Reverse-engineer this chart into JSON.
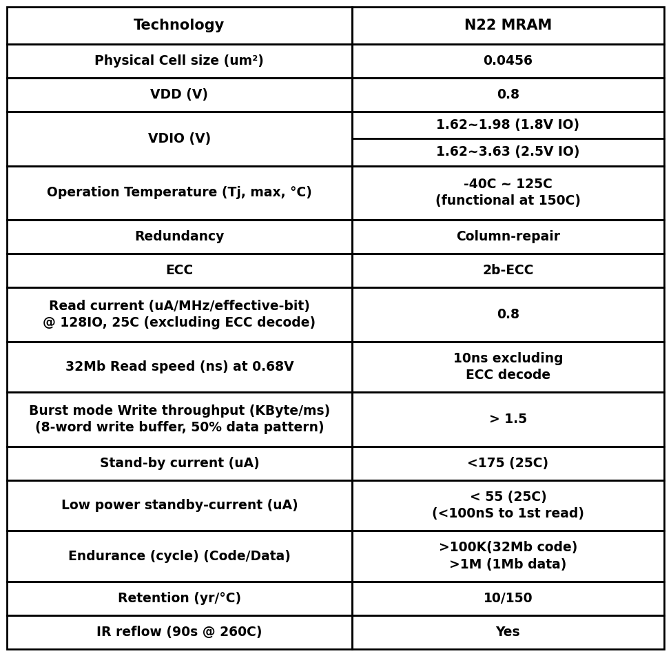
{
  "col1_header": "Technology",
  "col2_header": "N22 MRAM",
  "rows": [
    {
      "left": "Physical Cell size (um²)",
      "right_text": "0.0456",
      "right_split": false,
      "right_lines": [
        "0.0456"
      ]
    },
    {
      "left": "VDD (V)",
      "right_text": "0.8",
      "right_split": false,
      "right_lines": [
        "0.8"
      ]
    },
    {
      "left": "VDIO (V)",
      "right_text": "",
      "right_split": true,
      "right_lines": [
        "1.62~1.98 (1.8V IO)",
        "1.62~3.63 (2.5V IO)"
      ]
    },
    {
      "left": "Operation Temperature (Tj, max, °C)",
      "right_text": "",
      "right_split": false,
      "right_lines": [
        "-40C ~ 125C",
        "(functional at 150C)"
      ]
    },
    {
      "left": "Redundancy",
      "right_text": "Column-repair",
      "right_split": false,
      "right_lines": [
        "Column-repair"
      ]
    },
    {
      "left": "ECC",
      "right_text": "2b-ECC",
      "right_split": false,
      "right_lines": [
        "2b-ECC"
      ]
    },
    {
      "left": "Read current (uA/MHz/effective-bit)\n@ 128IO, 25C (excluding ECC decode)",
      "right_text": "0.8",
      "right_split": false,
      "right_lines": [
        "0.8"
      ]
    },
    {
      "left": "32Mb Read speed (ns) at 0.68V",
      "right_text": "",
      "right_split": false,
      "right_lines": [
        "10ns excluding",
        "ECC decode"
      ]
    },
    {
      "left": "Burst mode Write throughput (KByte/ms)\n(8-word write buffer, 50% data pattern)",
      "right_text": "> 1.5",
      "right_split": false,
      "right_lines": [
        "> 1.5"
      ]
    },
    {
      "left": "Stand-by current (uA)",
      "right_text": "<175 (25C)",
      "right_split": false,
      "right_lines": [
        "<175 (25C)"
      ]
    },
    {
      "left": "Low power standby-current (uA)",
      "right_text": "",
      "right_split": false,
      "right_lines": [
        "< 55 (25C)",
        "(<100nS to 1st read)"
      ]
    },
    {
      "left": "Endurance (cycle) (Code/Data)",
      "right_text": "",
      "right_split": false,
      "right_lines": [
        ">100K(32Mb code)",
        ">1M (1Mb data)"
      ]
    },
    {
      "left": "Retention (yr/°C)",
      "right_text": "10/150",
      "right_split": false,
      "right_lines": [
        "10/150"
      ]
    },
    {
      "left": "IR reflow (90s @ 260C)",
      "right_text": "Yes",
      "right_split": false,
      "right_lines": [
        "Yes"
      ]
    }
  ],
  "bg_color": "#ffffff",
  "border_color": "#000000",
  "text_color": "#000000",
  "font_size": 13.5,
  "header_font_size": 15.0,
  "col_split": 0.525,
  "row_heights_raw": [
    55,
    50,
    50,
    80,
    80,
    50,
    50,
    80,
    75,
    80,
    50,
    75,
    75,
    50,
    50
  ],
  "fig_width": 9.74,
  "fig_height": 9.52,
  "dpi": 100
}
